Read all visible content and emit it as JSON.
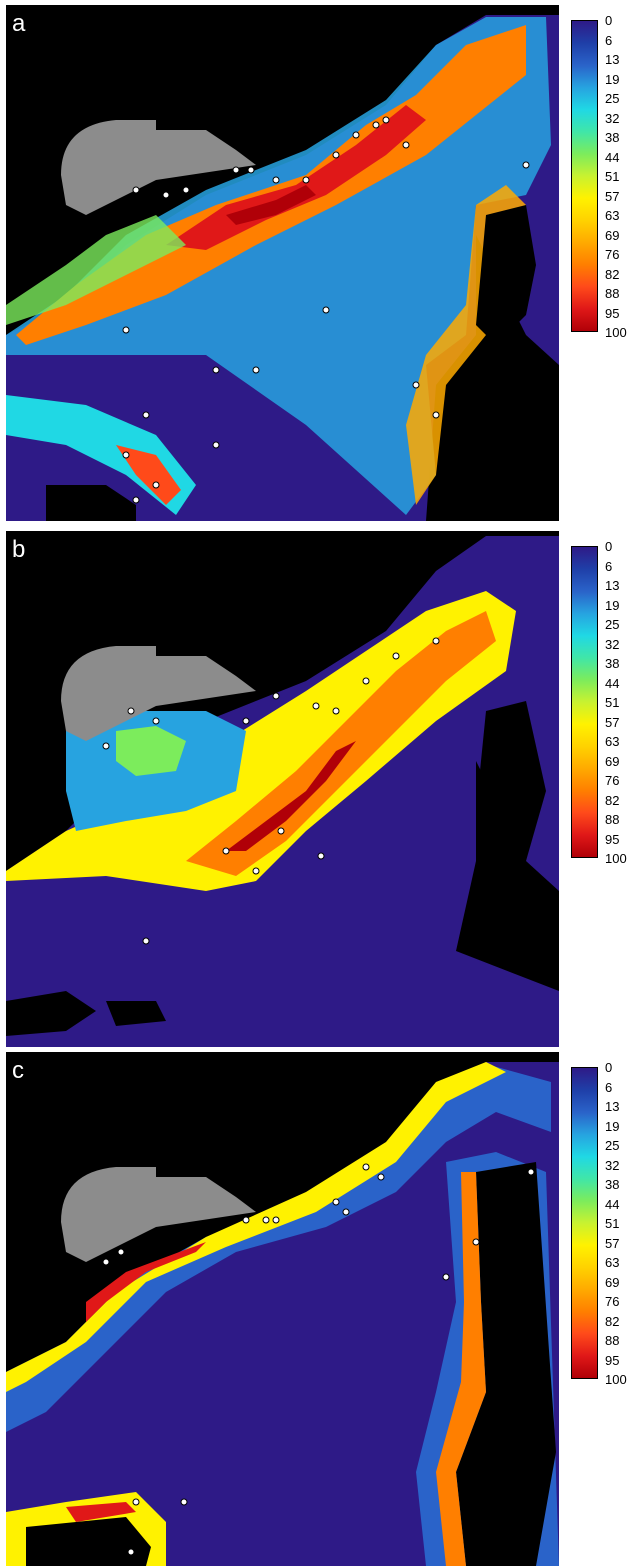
{
  "colorbar": {
    "ticks": [
      "0",
      "6",
      "13",
      "19",
      "25",
      "32",
      "38",
      "44",
      "51",
      "57",
      "63",
      "69",
      "76",
      "82",
      "88",
      "95",
      "100"
    ],
    "colors": [
      "#2e1a87",
      "#1f3fa8",
      "#2a63c9",
      "#27a3e0",
      "#20d8e4",
      "#40e6a8",
      "#7cec5c",
      "#c8f230",
      "#fff200",
      "#ffd200",
      "#ffaa00",
      "#ff7f00",
      "#ff4a1a",
      "#e01818",
      "#b00008"
    ]
  },
  "colors": {
    "land": "#000000",
    "gray_region": "#8c8c8c",
    "low": "#2e1a87",
    "marker_fill": "#ffffff",
    "marker_stroke": "#000000"
  },
  "panels": [
    {
      "letter": "a"
    },
    {
      "letter": "b"
    },
    {
      "letter": "c"
    }
  ]
}
